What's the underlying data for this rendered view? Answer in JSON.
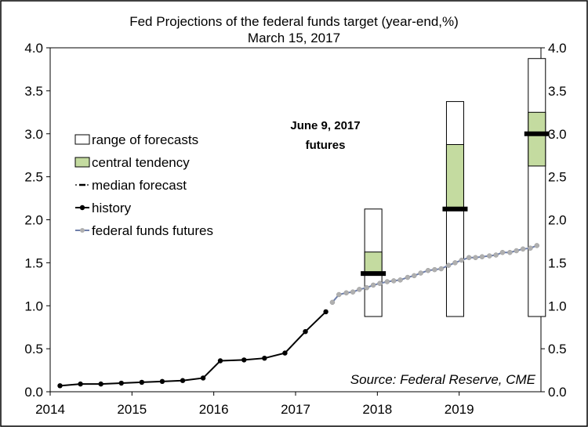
{
  "chart_data": {
    "type": "line",
    "title": "Fed Projections of the federal funds target (year-end,%)",
    "subtitle": "March 15, 2017",
    "xlim": [
      2014,
      2020
    ],
    "ylim": [
      0,
      4
    ],
    "x_ticks": [
      2014,
      2015,
      2016,
      2017,
      2018,
      2019
    ],
    "y_ticks": [
      "0.0",
      "0.5",
      "1.0",
      "1.5",
      "2.0",
      "2.5",
      "3.0",
      "3.5",
      "4.0"
    ],
    "grid": false,
    "legend_position": "left",
    "legend": [
      "range of forecasts",
      "central tendency",
      "median forecast",
      "history",
      "federal funds futures"
    ],
    "annotation": {
      "line1": "June 9, 2017",
      "line2": "futures"
    },
    "source": "Source: Federal Reserve, CME",
    "colors": {
      "history": "#000000",
      "futures_line": "#6f7faa",
      "futures_marker": "#b0b0b0",
      "central_tendency": "#c4dba0",
      "range": "#ffffff",
      "median": "#000000"
    },
    "history": {
      "x": [
        2014.12,
        2014.37,
        2014.62,
        2014.87,
        2015.12,
        2015.37,
        2015.62,
        2015.87,
        2016.08,
        2016.37,
        2016.62,
        2016.87,
        2017.12,
        2017.37
      ],
      "y": [
        0.07,
        0.09,
        0.09,
        0.1,
        0.11,
        0.12,
        0.13,
        0.16,
        0.36,
        0.37,
        0.39,
        0.45,
        0.7,
        0.93
      ]
    },
    "futures": {
      "x": [
        2017.45,
        2017.53,
        2017.62,
        2017.7,
        2017.78,
        2017.87,
        2017.95,
        2018.03,
        2018.12,
        2018.2,
        2018.28,
        2018.37,
        2018.45,
        2018.53,
        2018.62,
        2018.7,
        2018.78,
        2018.87,
        2018.95,
        2019.03,
        2019.12,
        2019.2,
        2019.28,
        2019.37,
        2019.45,
        2019.53,
        2019.62,
        2019.7,
        2019.78,
        2019.87,
        2019.95
      ],
      "y": [
        1.04,
        1.13,
        1.15,
        1.16,
        1.19,
        1.21,
        1.24,
        1.26,
        1.28,
        1.29,
        1.3,
        1.33,
        1.35,
        1.38,
        1.41,
        1.42,
        1.43,
        1.47,
        1.5,
        1.53,
        1.56,
        1.56,
        1.57,
        1.58,
        1.59,
        1.62,
        1.62,
        1.64,
        1.66,
        1.67,
        1.7
      ]
    },
    "projections": [
      {
        "year": 2017,
        "range_low": 0.875,
        "range_high": 2.125,
        "ct_low": 1.375,
        "ct_high": 1.625,
        "median": 1.375
      },
      {
        "year": 2018,
        "range_low": 0.875,
        "range_high": 3.375,
        "ct_low": 2.125,
        "ct_high": 2.875,
        "median": 2.125
      },
      {
        "year": 2019,
        "range_low": 0.875,
        "range_high": 3.875,
        "ct_low": 2.625,
        "ct_high": 3.25,
        "median": 3.0
      }
    ]
  }
}
